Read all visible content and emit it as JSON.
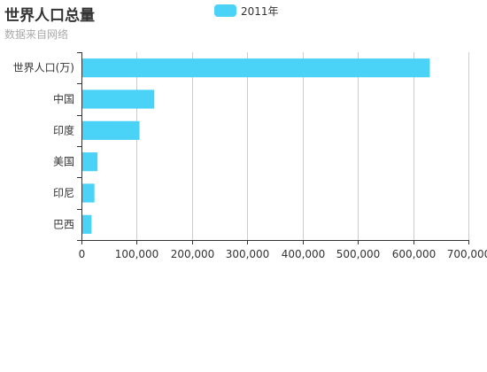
{
  "header": {
    "title": "世界人口总量",
    "subtitle": "数据来自网络"
  },
  "legend": {
    "items": [
      "2011年"
    ]
  },
  "colors": {
    "series": "#4ad2f7",
    "grid": "#cccccc",
    "axis": "#333333"
  },
  "chart_data": {
    "type": "bar",
    "orientation": "horizontal",
    "title": "世界人口总量",
    "subtitle": "数据来自网络",
    "categories": [
      "巴西",
      "印尼",
      "美国",
      "印度",
      "中国",
      "世界人口(万)"
    ],
    "series": [
      {
        "name": "2011年",
        "values": [
          18203,
          23489,
          29034,
          104970,
          131744,
          630230
        ]
      }
    ],
    "xlim": [
      0,
      700000
    ],
    "x_ticks": [
      "0",
      "100,000",
      "200,000",
      "300,000",
      "400,000",
      "500,000",
      "600,000",
      "700,000"
    ],
    "x_tick_values": [
      0,
      100000,
      200000,
      300000,
      400000,
      500000,
      600000,
      700000
    ],
    "xlabel": "",
    "ylabel": "",
    "grid": "vertical",
    "legend_position": "top-center"
  }
}
